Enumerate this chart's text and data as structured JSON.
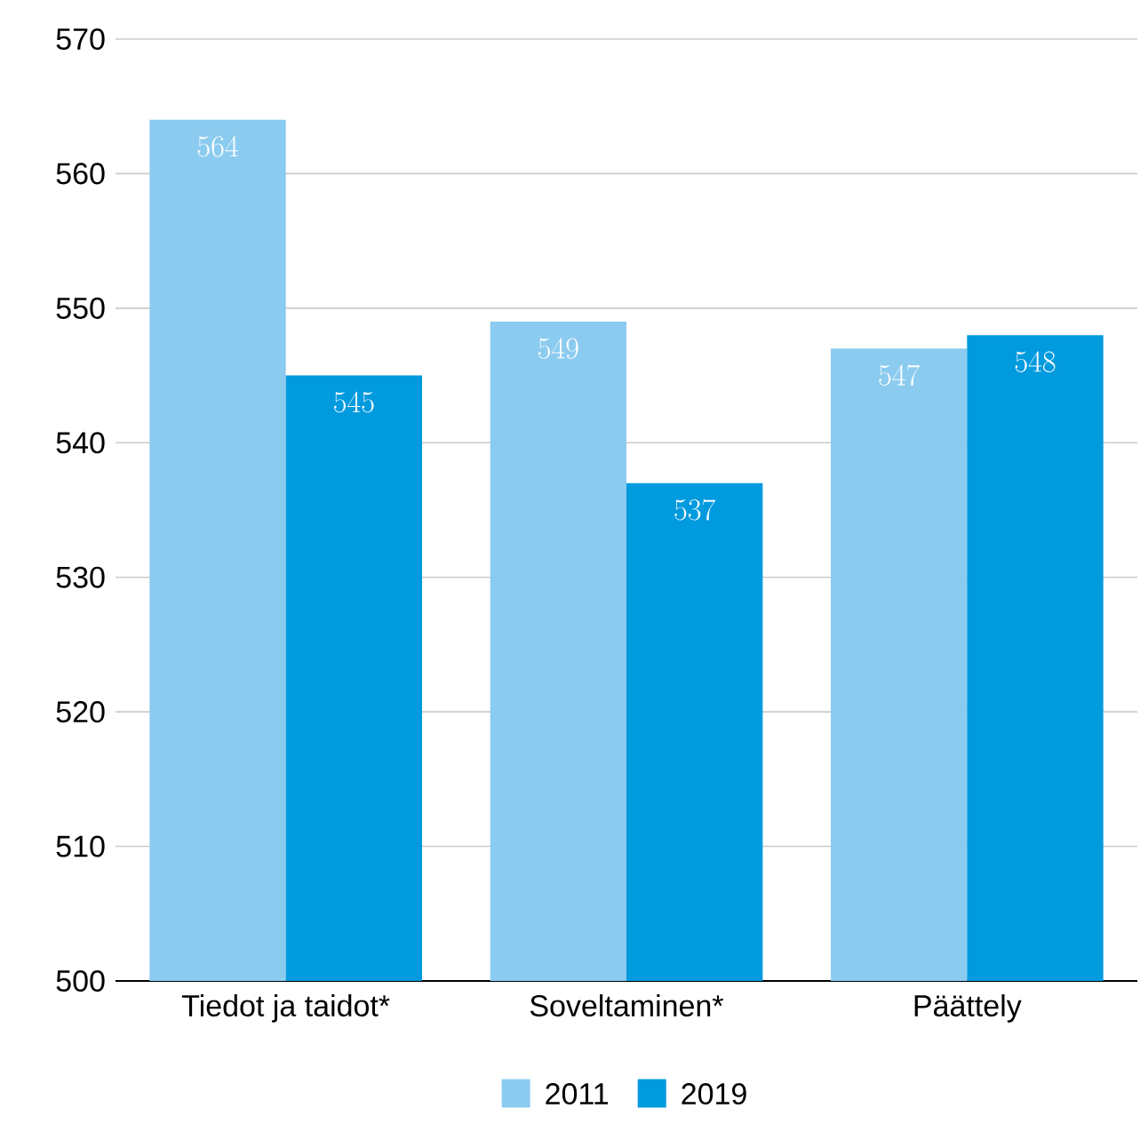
{
  "chart_data": {
    "type": "bar",
    "categories": [
      "Tiedot ja taidot*",
      "Soveltaminen*",
      "Päättely"
    ],
    "series": [
      {
        "name": "2011",
        "color": "#8ccbf0",
        "values": [
          564,
          549,
          547
        ]
      },
      {
        "name": "2019",
        "color": "#009ade",
        "values": [
          545,
          537,
          548
        ]
      }
    ],
    "ylim": [
      500,
      570
    ],
    "yticks": [
      500,
      510,
      520,
      530,
      540,
      550,
      560,
      570
    ],
    "grid": "y",
    "legend": "bottom",
    "data_labels": true
  }
}
